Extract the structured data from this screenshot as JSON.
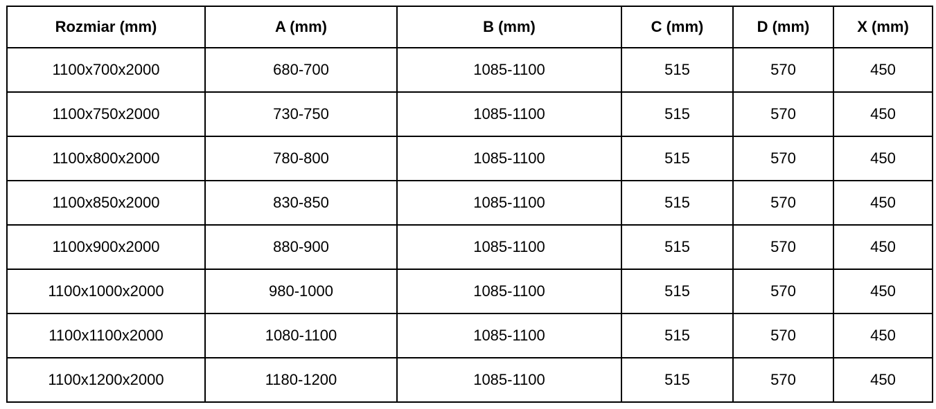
{
  "colors": {
    "border": "#000000",
    "text": "#000000",
    "background": "#ffffff"
  },
  "table": {
    "headers": [
      "Rozmiar (mm)",
      "A (mm)",
      "B (mm)",
      "C (mm)",
      "D (mm)",
      "X (mm)"
    ],
    "rows": [
      [
        "1100x700x2000",
        "680-700",
        "1085-1100",
        "515",
        "570",
        "450"
      ],
      [
        "1100x750x2000",
        "730-750",
        "1085-1100",
        "515",
        "570",
        "450"
      ],
      [
        "1100x800x2000",
        "780-800",
        "1085-1100",
        "515",
        "570",
        "450"
      ],
      [
        "1100x850x2000",
        "830-850",
        "1085-1100",
        "515",
        "570",
        "450"
      ],
      [
        "1100x900x2000",
        "880-900",
        "1085-1100",
        "515",
        "570",
        "450"
      ],
      [
        "1100x1000x2000",
        "980-1000",
        "1085-1100",
        "515",
        "570",
        "450"
      ],
      [
        "1100x1100x2000",
        "1080-1100",
        "1085-1100",
        "515",
        "570",
        "450"
      ],
      [
        "1100x1200x2000",
        "1180-1200",
        "1085-1100",
        "515",
        "570",
        "450"
      ]
    ]
  },
  "chart_data": {
    "type": "table",
    "title": "",
    "columns": [
      "Rozmiar (mm)",
      "A (mm)",
      "B (mm)",
      "C (mm)",
      "D (mm)",
      "X (mm)"
    ],
    "rows": [
      [
        "1100x700x2000",
        "680-700",
        "1085-1100",
        515,
        570,
        450
      ],
      [
        "1100x750x2000",
        "730-750",
        "1085-1100",
        515,
        570,
        450
      ],
      [
        "1100x800x2000",
        "780-800",
        "1085-1100",
        515,
        570,
        450
      ],
      [
        "1100x850x2000",
        "830-850",
        "1085-1100",
        515,
        570,
        450
      ],
      [
        "1100x900x2000",
        "880-900",
        "1085-1100",
        515,
        570,
        450
      ],
      [
        "1100x1000x2000",
        "980-1000",
        "1085-1100",
        515,
        570,
        450
      ],
      [
        "1100x1100x2000",
        "1080-1100",
        "1085-1100",
        515,
        570,
        450
      ],
      [
        "1100x1200x2000",
        "1180-1200",
        "1085-1100",
        515,
        570,
        450
      ]
    ]
  }
}
